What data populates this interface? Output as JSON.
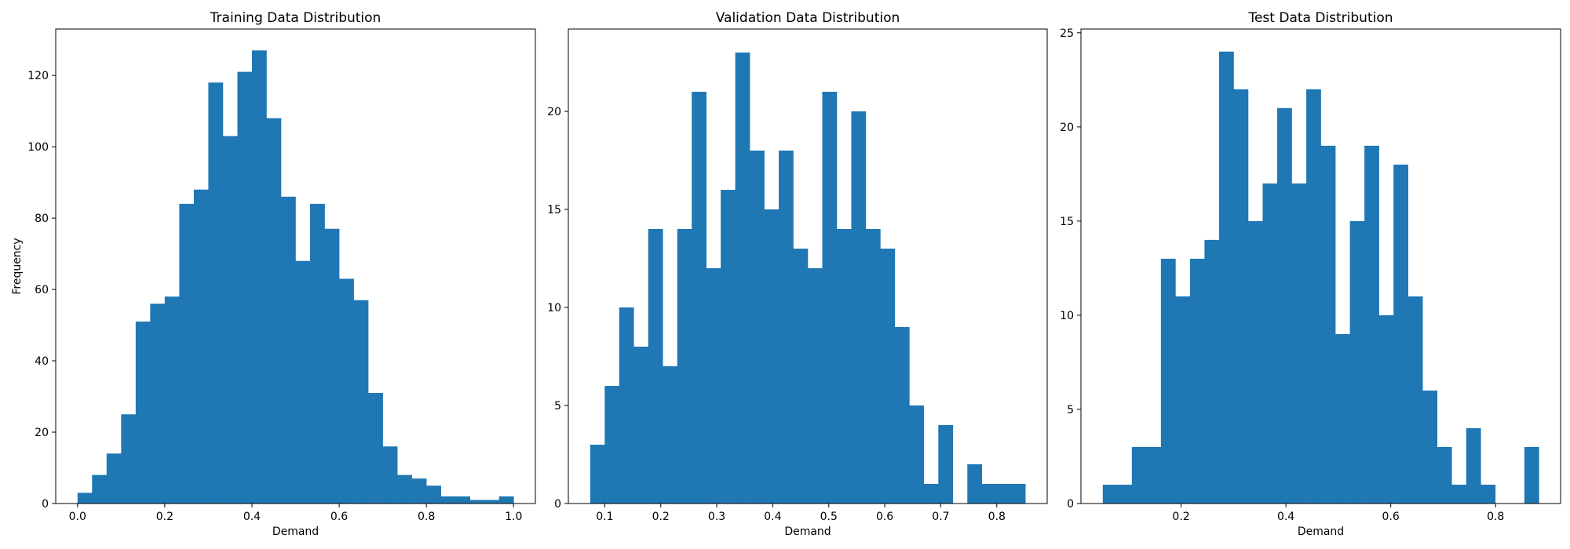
{
  "figure": {
    "ylabel": "Frequency",
    "bar_color": "#1f77b4",
    "background": "#ffffff"
  },
  "chart_data": [
    {
      "type": "bar",
      "title": "Training Data Distribution",
      "xlabel": "Demand",
      "ylabel": "Frequency",
      "xlim": [
        -0.05,
        1.05
      ],
      "ylim": [
        0,
        133
      ],
      "xticks": [
        0.0,
        0.2,
        0.4,
        0.6,
        0.8,
        1.0
      ],
      "xtick_labels": [
        "0.0",
        "0.2",
        "0.4",
        "0.6",
        "0.8",
        "1.0"
      ],
      "yticks": [
        0,
        20,
        40,
        60,
        80,
        100,
        120
      ],
      "ytick_labels": [
        "0",
        "20",
        "40",
        "60",
        "80",
        "100",
        "120"
      ],
      "bin_start": 0.0,
      "bin_end": 1.0,
      "values": [
        3,
        8,
        14,
        25,
        51,
        56,
        58,
        84,
        88,
        118,
        103,
        121,
        127,
        108,
        86,
        68,
        84,
        77,
        63,
        57,
        31,
        16,
        8,
        7,
        5,
        2,
        2,
        1,
        1,
        2
      ]
    },
    {
      "type": "bar",
      "title": "Validation Data Distribution",
      "xlabel": "Demand",
      "ylabel": "",
      "xlim": [
        0.035,
        0.89
      ],
      "ylim": [
        0,
        24.2
      ],
      "xticks": [
        0.1,
        0.2,
        0.3,
        0.4,
        0.5,
        0.6,
        0.7,
        0.8
      ],
      "xtick_labels": [
        "0.1",
        "0.2",
        "0.3",
        "0.4",
        "0.5",
        "0.6",
        "0.7",
        "0.8"
      ],
      "yticks": [
        0,
        5,
        10,
        15,
        20
      ],
      "ytick_labels": [
        "0",
        "5",
        "10",
        "15",
        "20"
      ],
      "bin_start": 0.074,
      "bin_end": 0.851,
      "values": [
        3,
        6,
        10,
        8,
        14,
        7,
        14,
        21,
        12,
        16,
        23,
        18,
        15,
        18,
        13,
        12,
        21,
        14,
        20,
        14,
        13,
        9,
        5,
        1,
        4,
        0,
        2,
        1,
        1,
        1
      ]
    },
    {
      "type": "bar",
      "title": "Test Data Distribution",
      "xlabel": "Demand",
      "ylabel": "",
      "xlim": [
        0.009,
        0.924
      ],
      "ylim": [
        0,
        25.2
      ],
      "xticks": [
        0.2,
        0.4,
        0.6,
        0.8
      ],
      "xtick_labels": [
        "0.2",
        "0.4",
        "0.6",
        "0.8"
      ],
      "yticks": [
        0,
        5,
        10,
        15,
        20,
        25
      ],
      "ytick_labels": [
        "0",
        "5",
        "10",
        "15",
        "20",
        "25"
      ],
      "bin_start": 0.0506,
      "bin_end": 0.8826,
      "values": [
        1,
        1,
        3,
        3,
        13,
        11,
        13,
        14,
        24,
        22,
        15,
        17,
        21,
        17,
        22,
        19,
        9,
        15,
        19,
        10,
        18,
        11,
        6,
        3,
        1,
        4,
        1,
        0,
        0,
        3
      ]
    }
  ]
}
